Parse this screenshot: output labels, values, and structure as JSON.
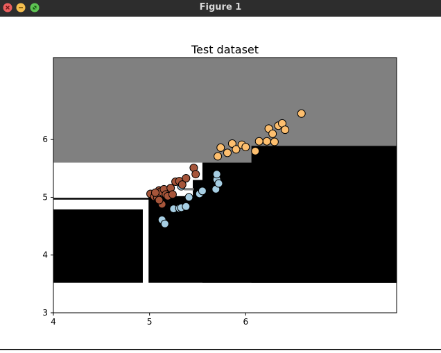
{
  "window": {
    "title": "Figure 1",
    "buttons": [
      {
        "name": "close-icon",
        "color": "#ec5f5e"
      },
      {
        "name": "minimize-icon",
        "color": "#f5bf4f"
      },
      {
        "name": "maximize-icon",
        "color": "#5fc454"
      }
    ]
  },
  "chart_data": {
    "type": "scatter",
    "title": "Test dataset",
    "xlabel": "",
    "ylabel": "",
    "xlim": [
      4,
      7.57
    ],
    "ylim": [
      3,
      7.42
    ],
    "xticks": [
      "4",
      "5",
      "6"
    ],
    "yticks": [
      "3",
      "4",
      "5",
      "6"
    ],
    "grid": false,
    "legend": "none",
    "background_regions": [
      {
        "color": "#808080",
        "x0": 4,
        "x1": 7.57,
        "y0": 5.6,
        "y1": 7.42
      },
      {
        "color": "#000000",
        "x0": 4,
        "x1": 4.93,
        "y0": 3.52,
        "y1": 4.79
      },
      {
        "color": "#000000",
        "x0": 4.99,
        "x1": 7.57,
        "y0": 3.52,
        "y1": 5.02
      },
      {
        "color": "#000000",
        "x0": 5.55,
        "x1": 7.57,
        "y0": 3.52,
        "y1": 5.6
      },
      {
        "color": "#000000",
        "x0": 6.06,
        "x1": 7.57,
        "y0": 3.52,
        "y1": 5.89
      },
      {
        "color": "#000000",
        "x0": 5.45,
        "x1": 5.58,
        "y0": 4.8,
        "y1": 5.3
      },
      {
        "color": "#000000",
        "x0": 4,
        "x1": 5.45,
        "y0": 4.96,
        "y1": 4.99
      },
      {
        "color": "#808080",
        "x0": 5.36,
        "x1": 5.46,
        "y0": 5.12,
        "y1": 5.16
      }
    ],
    "series": [
      {
        "color": "#a6cee3",
        "points": [
          [
            5.13,
            4.61
          ],
          [
            5.16,
            4.54
          ],
          [
            5.25,
            4.8
          ],
          [
            5.31,
            4.81
          ],
          [
            5.33,
            4.82
          ],
          [
            5.38,
            4.84
          ],
          [
            5.41,
            5.0
          ],
          [
            5.33,
            5.19
          ],
          [
            5.52,
            5.06
          ],
          [
            5.55,
            5.11
          ],
          [
            5.69,
            5.14
          ],
          [
            5.7,
            5.31
          ],
          [
            5.72,
            5.24
          ],
          [
            5.7,
            5.4
          ]
        ]
      },
      {
        "color": "#a6553a",
        "points": [
          [
            5.01,
            5.06
          ],
          [
            5.05,
            5.01
          ],
          [
            5.08,
            5.0
          ],
          [
            5.1,
            5.12
          ],
          [
            5.12,
            5.1
          ],
          [
            5.13,
            4.88
          ],
          [
            5.15,
            5.14
          ],
          [
            5.17,
            5.05
          ],
          [
            5.19,
            5.02
          ],
          [
            5.22,
            5.16
          ],
          [
            5.24,
            5.05
          ],
          [
            5.27,
            5.27
          ],
          [
            5.31,
            5.28
          ],
          [
            5.34,
            5.22
          ],
          [
            5.38,
            5.33
          ],
          [
            5.46,
            5.51
          ],
          [
            5.48,
            5.4
          ],
          [
            5.1,
            4.95
          ],
          [
            5.06,
            5.08
          ]
        ]
      },
      {
        "color": "#fdbf6f",
        "points": [
          [
            5.71,
            5.71
          ],
          [
            5.74,
            5.86
          ],
          [
            5.81,
            5.77
          ],
          [
            5.86,
            5.93
          ],
          [
            5.9,
            5.83
          ],
          [
            5.96,
            5.91
          ],
          [
            6.0,
            5.87
          ],
          [
            6.1,
            5.8
          ],
          [
            6.14,
            5.97
          ],
          [
            6.22,
            5.97
          ],
          [
            6.24,
            6.19
          ],
          [
            6.28,
            6.1
          ],
          [
            6.3,
            5.96
          ],
          [
            6.34,
            6.24
          ],
          [
            6.38,
            6.28
          ],
          [
            6.41,
            6.17
          ],
          [
            6.58,
            6.45
          ]
        ]
      }
    ]
  }
}
